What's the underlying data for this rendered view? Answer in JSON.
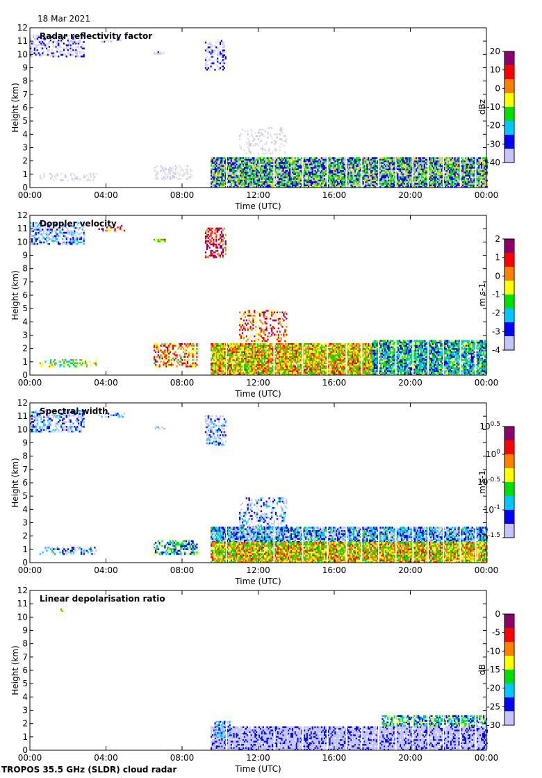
{
  "date_label": "18 Mar 2021",
  "footer_label": "TROPOS 35.5 GHz (SLDR) cloud radar",
  "chart_data": [
    {
      "type": "heatmap",
      "title": "Radar reflectivity factor",
      "xlabel": "Time (UTC)",
      "ylabel": "Height (km)",
      "xlim": [
        0,
        24
      ],
      "ylim": [
        0,
        12
      ],
      "xticks": [
        "00:00",
        "04:00",
        "08:00",
        "12:00",
        "16:00",
        "20:00",
        "00:00"
      ],
      "yticks": [
        "0",
        "1",
        "2",
        "3",
        "4",
        "5",
        "6",
        "7",
        "8",
        "9",
        "10",
        "11",
        "12"
      ],
      "colorbar": {
        "label": "dBz",
        "ticks": [
          "20",
          "10",
          "0",
          "-10",
          "-20",
          "-30",
          "-40"
        ],
        "range": [
          -40,
          20
        ]
      },
      "colors": [
        "#e0e0e0",
        "#c4c4ff",
        "#0000ff",
        "#00e000",
        "#ffd000",
        "#ff0000",
        "#8b006b"
      ],
      "regions": [
        {
          "t": [
            0.0,
            2.8
          ],
          "h": [
            9.8,
            11.4
          ],
          "level": 0.18,
          "density": 0.45
        },
        {
          "t": [
            3.6,
            5.0
          ],
          "h": [
            10.9,
            11.2
          ],
          "level": 0.15,
          "density": 0.25
        },
        {
          "t": [
            6.5,
            7.1
          ],
          "h": [
            10.0,
            10.2
          ],
          "level": 0.1,
          "density": 0.4
        },
        {
          "t": [
            9.2,
            10.3
          ],
          "h": [
            8.8,
            11.0
          ],
          "level": 0.2,
          "density": 0.35
        },
        {
          "t": [
            0.5,
            3.5
          ],
          "h": [
            0.5,
            1.1
          ],
          "level": 0.02,
          "density": 0.3
        },
        {
          "t": [
            6.5,
            8.5
          ],
          "h": [
            0.6,
            1.6
          ],
          "level": 0.03,
          "density": 0.35
        },
        {
          "t": [
            11.0,
            13.5
          ],
          "h": [
            2.5,
            4.5
          ],
          "level": 0.05,
          "density": 0.2
        },
        {
          "t": [
            9.5,
            24.0
          ],
          "h": [
            0.0,
            2.2
          ],
          "level": 0.42,
          "density": 0.9
        }
      ]
    },
    {
      "type": "heatmap",
      "title": "Doppler velocity",
      "xlabel": "Time (UTC)",
      "ylabel": "Height (km)",
      "xlim": [
        0,
        24
      ],
      "ylim": [
        0,
        12
      ],
      "xticks": [
        "00:00",
        "04:00",
        "08:00",
        "12:00",
        "16:00",
        "20:00",
        "00:00"
      ],
      "yticks": [
        "0",
        "1",
        "2",
        "3",
        "4",
        "5",
        "6",
        "7",
        "8",
        "9",
        "10",
        "11",
        "12"
      ],
      "colorbar": {
        "label": "m s-1",
        "ticks": [
          "2",
          "1",
          "0",
          "-1",
          "-2",
          "-3",
          "-4"
        ],
        "range": [
          -4,
          2
        ]
      },
      "colors": [
        "#c4c4ff",
        "#0000ff",
        "#00c8ff",
        "#00e000",
        "#ffff00",
        "#ff8000",
        "#ff0000",
        "#8b006b"
      ],
      "regions": [
        {
          "t": [
            0.0,
            2.8
          ],
          "h": [
            9.8,
            11.4
          ],
          "level": 0.15,
          "density": 0.45
        },
        {
          "t": [
            3.6,
            5.0
          ],
          "h": [
            10.8,
            11.2
          ],
          "level": 0.8,
          "density": 0.35
        },
        {
          "t": [
            6.5,
            7.1
          ],
          "h": [
            10.0,
            10.2
          ],
          "level": 0.6,
          "density": 0.4
        },
        {
          "t": [
            9.2,
            10.3
          ],
          "h": [
            8.8,
            11.0
          ],
          "level": 0.85,
          "density": 0.4
        },
        {
          "t": [
            0.5,
            3.5
          ],
          "h": [
            0.6,
            1.1
          ],
          "level": 0.5,
          "density": 0.35
        },
        {
          "t": [
            6.5,
            8.8
          ],
          "h": [
            0.6,
            2.3
          ],
          "level": 0.7,
          "density": 0.45
        },
        {
          "t": [
            11.0,
            13.5
          ],
          "h": [
            2.5,
            4.8
          ],
          "level": 0.75,
          "density": 0.3
        },
        {
          "t": [
            9.5,
            18.0
          ],
          "h": [
            0.0,
            2.4
          ],
          "level": 0.6,
          "density": 0.9
        },
        {
          "t": [
            18.0,
            24.0
          ],
          "h": [
            0.0,
            2.6
          ],
          "level": 0.35,
          "density": 0.9
        }
      ]
    },
    {
      "type": "heatmap",
      "title": "Spectral width",
      "xlabel": "Time (UTC)",
      "ylabel": "Height (km)",
      "xlim": [
        0,
        24
      ],
      "ylim": [
        0,
        12
      ],
      "xticks": [
        "00:00",
        "04:00",
        "08:00",
        "12:00",
        "16:00",
        "20:00",
        "00:00"
      ],
      "yticks": [
        "0",
        "1",
        "2",
        "3",
        "4",
        "5",
        "6",
        "7",
        "8",
        "9",
        "10",
        "11",
        "12"
      ],
      "colorbar": {
        "label": "m s-1",
        "ticks": [
          "10^0.5",
          "10^0",
          "10^-0.5",
          "10^-1",
          "10^-1.5"
        ],
        "range": [
          -1.5,
          0.5
        ]
      },
      "colors": [
        "#c4c4ff",
        "#0000ff",
        "#00c8ff",
        "#00e000",
        "#ffff00",
        "#ff8000",
        "#ff0000",
        "#8b006b"
      ],
      "regions": [
        {
          "t": [
            0.0,
            2.8
          ],
          "h": [
            9.8,
            11.4
          ],
          "level": 0.12,
          "density": 0.45
        },
        {
          "t": [
            3.6,
            5.0
          ],
          "h": [
            10.9,
            11.2
          ],
          "level": 0.1,
          "density": 0.3
        },
        {
          "t": [
            6.5,
            7.1
          ],
          "h": [
            10.0,
            10.2
          ],
          "level": 0.1,
          "density": 0.4
        },
        {
          "t": [
            9.2,
            10.3
          ],
          "h": [
            8.8,
            11.0
          ],
          "level": 0.12,
          "density": 0.35
        },
        {
          "t": [
            0.5,
            3.5
          ],
          "h": [
            0.6,
            1.1
          ],
          "level": 0.2,
          "density": 0.35
        },
        {
          "t": [
            6.5,
            8.8
          ],
          "h": [
            0.6,
            1.6
          ],
          "level": 0.35,
          "density": 0.45
        },
        {
          "t": [
            11.0,
            13.5
          ],
          "h": [
            2.5,
            4.8
          ],
          "level": 0.15,
          "density": 0.3
        },
        {
          "t": [
            9.5,
            24.0
          ],
          "h": [
            1.5,
            2.6
          ],
          "level": 0.2,
          "density": 0.85
        },
        {
          "t": [
            9.5,
            24.0
          ],
          "h": [
            0.0,
            1.5
          ],
          "level": 0.6,
          "density": 0.92
        }
      ]
    },
    {
      "type": "heatmap",
      "title": "Linear depolarisation ratio",
      "xlabel": "Time (UTC)",
      "ylabel": "Height (km)",
      "xlim": [
        0,
        24
      ],
      "ylim": [
        0,
        12
      ],
      "xticks": [
        "00:00",
        "04:00",
        "08:00",
        "12:00",
        "16:00",
        "20:00",
        "00:00"
      ],
      "yticks": [
        "0",
        "1",
        "2",
        "3",
        "4",
        "5",
        "6",
        "7",
        "8",
        "9",
        "10",
        "11",
        "12"
      ],
      "colorbar": {
        "label": "dB",
        "ticks": [
          "0",
          "-5",
          "-10",
          "-15",
          "-20",
          "-25",
          "-30"
        ],
        "range": [
          -30,
          0
        ]
      },
      "colors": [
        "#c4c4ff",
        "#0000ff",
        "#00c8ff",
        "#00e000",
        "#ffff00",
        "#ff8000",
        "#ff0000",
        "#8b006b"
      ],
      "regions": [
        {
          "t": [
            1.6,
            1.7
          ],
          "h": [
            10.4,
            10.6
          ],
          "level": 0.5,
          "density": 0.6
        },
        {
          "t": [
            9.5,
            24.0
          ],
          "h": [
            0.0,
            1.8
          ],
          "level": 0.02,
          "density": 0.9
        },
        {
          "t": [
            9.7,
            10.5
          ],
          "h": [
            1.0,
            2.2
          ],
          "level": 0.15,
          "density": 0.5
        },
        {
          "t": [
            18.5,
            24.0
          ],
          "h": [
            1.8,
            2.6
          ],
          "level": 0.35,
          "density": 0.6
        }
      ]
    }
  ]
}
